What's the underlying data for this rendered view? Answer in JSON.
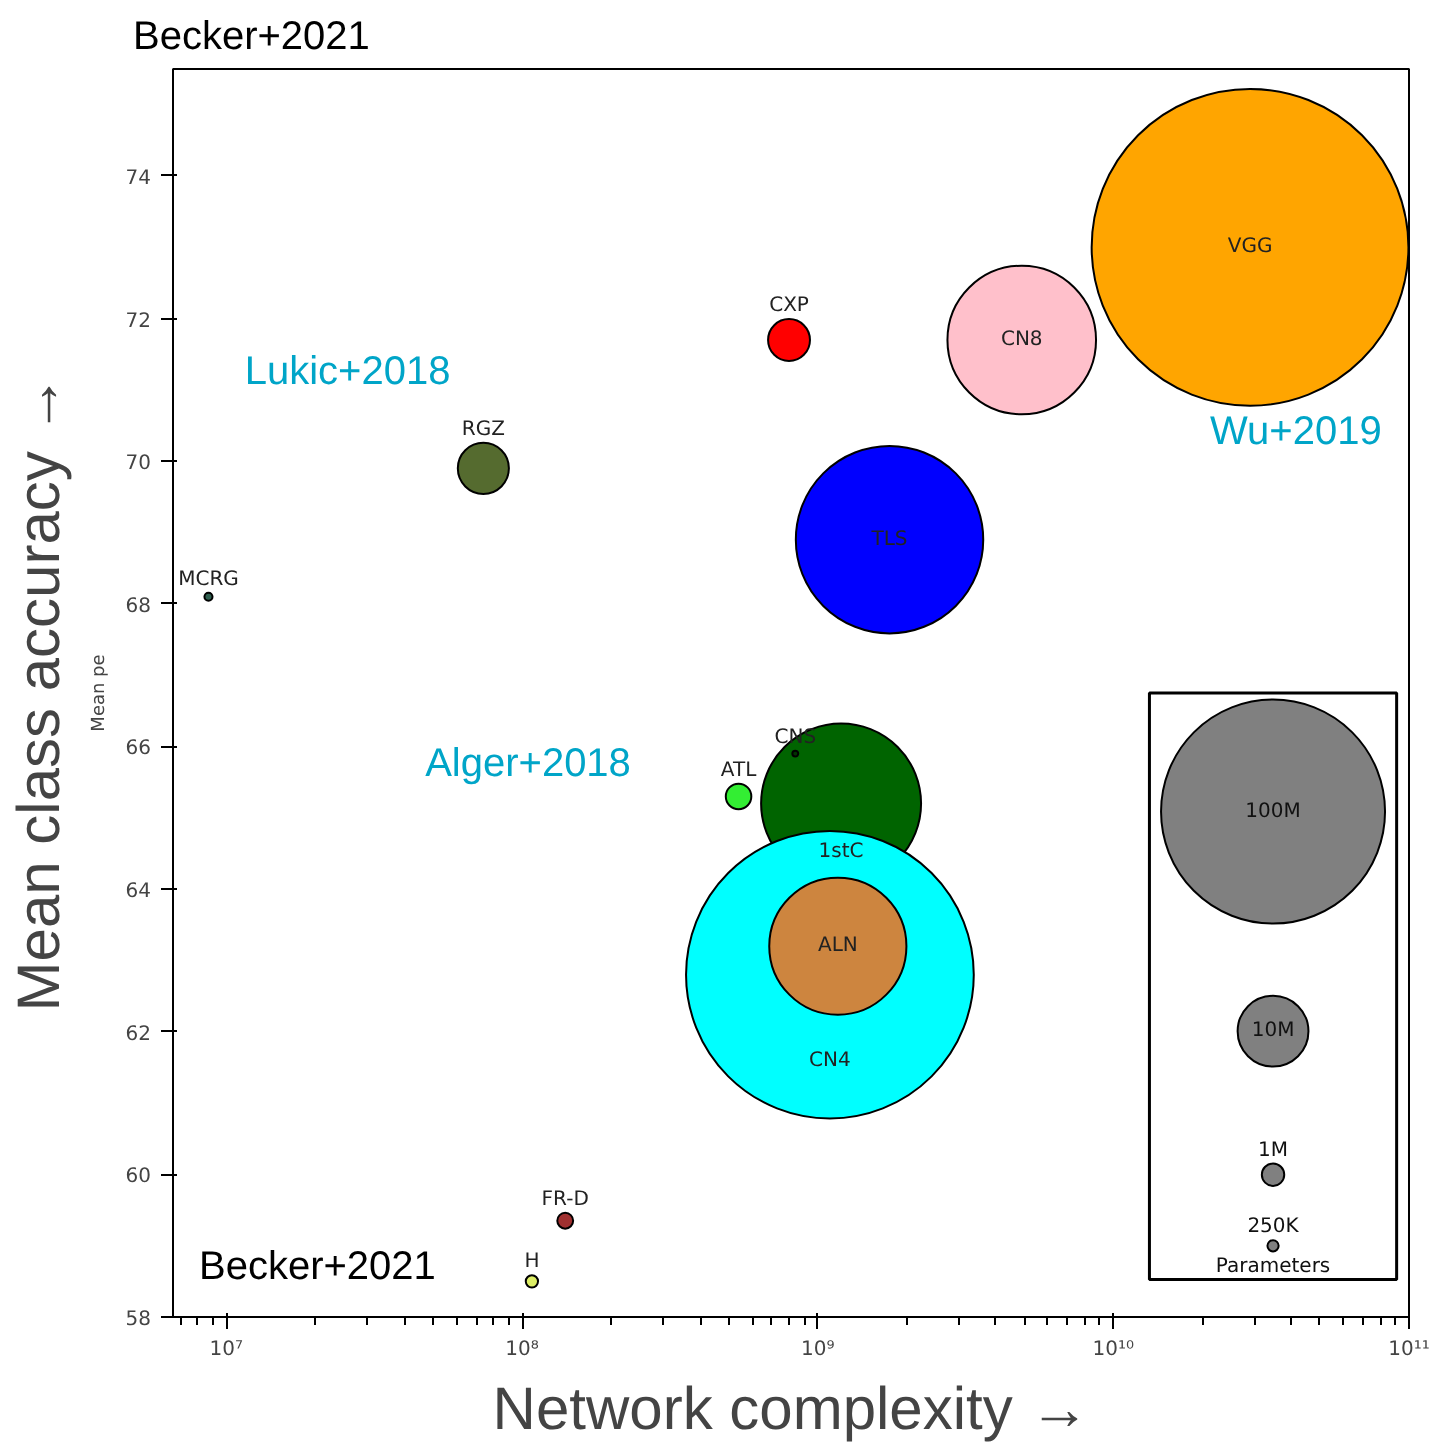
{
  "chart_data": {
    "type": "bubble",
    "title": "Becker+2021",
    "xlabel": "Network complexity →",
    "ylabel": "Mean class accuracy →",
    "log": "x",
    "grid": false,
    "legend_title": "Parameters",
    "xlim": [
      6600000.0,
      100000000000.0
    ],
    "ylim": [
      58,
      75.5
    ],
    "xticks": [
      {
        "value": 10000000.0,
        "label": "10⁷"
      },
      {
        "value": 100000000.0,
        "label": "10⁸"
      },
      {
        "value": 1000000000.0,
        "label": "10⁹"
      },
      {
        "value": 10000000000.0,
        "label": "10¹⁰"
      },
      {
        "value": 100000000000.0,
        "label": "10¹¹"
      }
    ],
    "yticks": [
      58,
      60,
      62,
      64,
      66,
      68,
      70,
      72,
      74
    ],
    "size_legend": [
      {
        "value": 100,
        "label": "100M"
      },
      {
        "value": 10,
        "label": "10M"
      },
      {
        "value": 1,
        "label": "1M"
      },
      {
        "value": 0.25,
        "label": "250K"
      }
    ],
    "series": [
      {
        "name": "VGG",
        "color": "#ffa500",
        "x": [
          29000000000.0
        ],
        "values": [
          73.0
        ],
        "sizes": [
          200
        ]
      },
      {
        "name": "CN8",
        "color": "#ffc0cb",
        "x": [
          4900000000.0
        ],
        "values": [
          71.7
        ],
        "sizes": [
          44
        ]
      },
      {
        "name": "CXP",
        "color": "#ff0000",
        "x": [
          800000000.0
        ],
        "values": [
          71.7
        ],
        "sizes": [
          3.5
        ]
      },
      {
        "name": "TLS",
        "color": "#0000ff",
        "x": [
          1750000000.0
        ],
        "values": [
          68.9
        ],
        "sizes": [
          70
        ]
      },
      {
        "name": "RGZ",
        "color": "#556b2f",
        "x": [
          74000000.0
        ],
        "values": [
          69.9
        ],
        "sizes": [
          5.2
        ]
      },
      {
        "name": "MCRG",
        "color": "#2f5f4f",
        "x": [
          8700000.0
        ],
        "values": [
          68.1
        ],
        "sizes": [
          0.13
        ]
      },
      {
        "name": "1stC",
        "color": "#006400",
        "x": [
          1200000000.0
        ],
        "values": [
          65.2
        ],
        "sizes": [
          51
        ]
      },
      {
        "name": "CNS",
        "color": "#003300",
        "x": [
          840000000.0
        ],
        "values": [
          65.9
        ],
        "sizes": [
          0.07
        ]
      },
      {
        "name": "ATL",
        "color": "#33ee33",
        "x": [
          540000000.0
        ],
        "values": [
          65.3
        ],
        "sizes": [
          1.3
        ]
      },
      {
        "name": "CN4",
        "color": "#00ffff",
        "x": [
          1100000000.0
        ],
        "values": [
          62.8
        ],
        "sizes": [
          165
        ]
      },
      {
        "name": "ALN",
        "color": "#cd853f",
        "x": [
          1170000000.0
        ],
        "values": [
          63.2
        ],
        "sizes": [
          37.5
        ]
      },
      {
        "name": "FR-D",
        "color": "#a03030",
        "x": [
          140000000.0
        ],
        "values": [
          59.35
        ],
        "sizes": [
          0.5
        ]
      },
      {
        "name": "H",
        "color": "#ddee66",
        "x": [
          108000000.0
        ],
        "values": [
          58.5
        ],
        "sizes": [
          0.3
        ]
      }
    ],
    "annotations": [
      "Mean pe",
      "Lukic+2018",
      "Wu+2019",
      "Alger+2018",
      "Becker+2021"
    ]
  }
}
